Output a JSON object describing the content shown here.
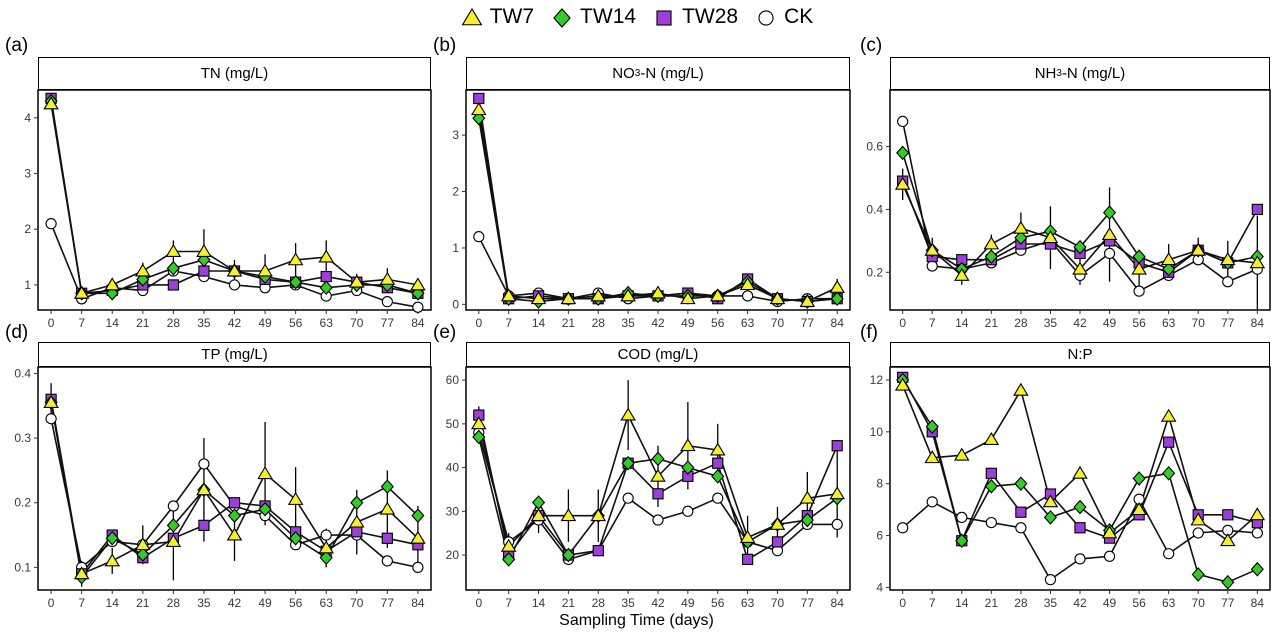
{
  "legend": [
    {
      "name": "TW7",
      "marker": "triangle",
      "color": "#f5ef2e"
    },
    {
      "name": "TW14",
      "marker": "diamond",
      "color": "#35c92a"
    },
    {
      "name": "TW28",
      "marker": "square",
      "color": "#9b3fd6"
    },
    {
      "name": "CK",
      "marker": "circle",
      "color": "#ffffff"
    }
  ],
  "xlabel": "Sampling Time (days)",
  "chart_data": [
    {
      "type": "line",
      "letter": "(a)",
      "title": "TN (mg/L)",
      "x": [
        0,
        7,
        14,
        21,
        28,
        35,
        42,
        49,
        56,
        63,
        70,
        77,
        84
      ],
      "ylim": [
        0.55,
        4.5
      ],
      "yticks": [
        1,
        2,
        3,
        4
      ],
      "ytick_labels": [
        "1",
        "2",
        "3",
        "4"
      ],
      "series": [
        {
          "name": "TW7",
          "values": [
            4.25,
            0.85,
            1.0,
            1.25,
            1.6,
            1.6,
            1.25,
            1.25,
            1.45,
            1.5,
            1.05,
            1.1,
            1.0
          ],
          "err": [
            0.1,
            0.05,
            0.1,
            0.15,
            0.2,
            0.4,
            0.2,
            0.3,
            0.3,
            0.3,
            0.15,
            0.2,
            0.1
          ]
        },
        {
          "name": "TW14",
          "values": [
            4.3,
            0.85,
            0.85,
            1.1,
            1.3,
            1.45,
            1.25,
            1.15,
            1.05,
            0.95,
            1.0,
            1.0,
            0.85
          ]
        },
        {
          "name": "TW28",
          "values": [
            4.35,
            0.85,
            0.9,
            1.0,
            1.0,
            1.25,
            1.25,
            1.1,
            1.05,
            1.15,
            1.05,
            0.95,
            0.85
          ]
        },
        {
          "name": "CK",
          "values": [
            2.1,
            0.75,
            0.95,
            0.9,
            1.25,
            1.15,
            1.0,
            0.95,
            1.0,
            0.8,
            0.9,
            0.7,
            0.6
          ]
        }
      ]
    },
    {
      "type": "line",
      "letter": "(b)",
      "title": "NO3-N (mg/L)",
      "title_parts": [
        "NO",
        "3",
        "-N (mg/L)"
      ],
      "x": [
        0,
        7,
        14,
        21,
        28,
        35,
        42,
        49,
        56,
        63,
        70,
        77,
        84
      ],
      "ylim": [
        -0.1,
        3.8
      ],
      "yticks": [
        0,
        1,
        2,
        3
      ],
      "ytick_labels": [
        "0",
        "1",
        "2",
        "3"
      ],
      "series": [
        {
          "name": "TW7",
          "values": [
            3.45,
            0.15,
            0.1,
            0.1,
            0.15,
            0.15,
            0.2,
            0.1,
            0.15,
            0.35,
            0.1,
            0.05,
            0.3
          ],
          "err": [
            0.2,
            0.05,
            0.05,
            0.05,
            0.05,
            0.05,
            0.1,
            0.1,
            0.1,
            0.15,
            0.05,
            0.05,
            0.15
          ]
        },
        {
          "name": "TW14",
          "values": [
            3.3,
            0.1,
            0.05,
            0.1,
            0.1,
            0.2,
            0.15,
            0.15,
            0.15,
            0.4,
            0.1,
            0.05,
            0.1
          ]
        },
        {
          "name": "TW28",
          "values": [
            3.65,
            0.1,
            0.15,
            0.1,
            0.1,
            0.15,
            0.15,
            0.2,
            0.1,
            0.45,
            0.1,
            0.05,
            0.1
          ]
        },
        {
          "name": "CK",
          "values": [
            1.2,
            0.15,
            0.2,
            0.1,
            0.2,
            0.1,
            0.15,
            0.2,
            0.15,
            0.15,
            0.05,
            0.1,
            0.1
          ]
        }
      ]
    },
    {
      "type": "line",
      "letter": "(c)",
      "title": "NH3-N (mg/L)",
      "title_parts": [
        "NH",
        "3",
        "-N (mg/L)"
      ],
      "x": [
        0,
        7,
        14,
        21,
        28,
        35,
        42,
        49,
        56,
        63,
        70,
        77,
        84
      ],
      "ylim": [
        0.08,
        0.78
      ],
      "yticks": [
        0.2,
        0.4,
        0.6
      ],
      "ytick_labels": [
        "0.2",
        "0.4",
        "0.6"
      ],
      "series": [
        {
          "name": "TW7",
          "values": [
            0.48,
            0.27,
            0.19,
            0.29,
            0.34,
            0.31,
            0.21,
            0.32,
            0.21,
            0.24,
            0.27,
            0.24,
            0.23
          ],
          "err": [
            0.05,
            0.04,
            0.03,
            0.03,
            0.05,
            0.1,
            0.05,
            0.15,
            0.06,
            0.05,
            0.04,
            0.06,
            0.15
          ]
        },
        {
          "name": "TW14",
          "values": [
            0.58,
            0.27,
            0.21,
            0.25,
            0.31,
            0.33,
            0.28,
            0.39,
            0.25,
            0.21,
            0.27,
            0.23,
            0.25
          ]
        },
        {
          "name": "TW28",
          "values": [
            0.49,
            0.25,
            0.24,
            0.24,
            0.29,
            0.29,
            0.26,
            0.3,
            0.23,
            0.2,
            0.27,
            0.23,
            0.4
          ]
        },
        {
          "name": "CK",
          "values": [
            0.68,
            0.22,
            0.21,
            0.23,
            0.27,
            0.3,
            0.19,
            0.26,
            0.14,
            0.19,
            0.24,
            0.17,
            0.21
          ]
        }
      ]
    },
    {
      "type": "line",
      "letter": "(d)",
      "title": "TP (mg/L)",
      "x": [
        0,
        7,
        14,
        21,
        28,
        35,
        42,
        49,
        56,
        63,
        70,
        77,
        84
      ],
      "ylim": [
        0.065,
        0.41
      ],
      "yticks": [
        0.1,
        0.2,
        0.3,
        0.4
      ],
      "ytick_labels": [
        "0.1",
        "0.2",
        "0.3",
        "0.4"
      ],
      "series": [
        {
          "name": "TW7",
          "values": [
            0.355,
            0.09,
            0.11,
            0.135,
            0.14,
            0.22,
            0.15,
            0.245,
            0.205,
            0.13,
            0.17,
            0.19,
            0.145
          ],
          "err": [
            0.03,
            0.02,
            0.02,
            0.03,
            0.06,
            0.08,
            0.04,
            0.08,
            0.05,
            0.03,
            0.05,
            0.06,
            0.05
          ]
        },
        {
          "name": "TW14",
          "values": [
            0.355,
            0.085,
            0.145,
            0.12,
            0.165,
            0.22,
            0.18,
            0.19,
            0.145,
            0.115,
            0.2,
            0.225,
            0.18
          ]
        },
        {
          "name": "TW28",
          "values": [
            0.36,
            0.09,
            0.15,
            0.115,
            0.145,
            0.165,
            0.2,
            0.195,
            0.155,
            0.125,
            0.155,
            0.145,
            0.135
          ]
        },
        {
          "name": "CK",
          "values": [
            0.33,
            0.1,
            0.14,
            0.135,
            0.195,
            0.26,
            0.195,
            0.18,
            0.135,
            0.15,
            0.15,
            0.11,
            0.1
          ]
        }
      ]
    },
    {
      "type": "line",
      "letter": "(e)",
      "title": "COD (mg/L)",
      "x": [
        0,
        7,
        14,
        21,
        28,
        35,
        42,
        49,
        56,
        63,
        70,
        77,
        84
      ],
      "ylim": [
        12,
        63
      ],
      "yticks": [
        20,
        30,
        40,
        50,
        60
      ],
      "ytick_labels": [
        "20",
        "30",
        "40",
        "50",
        "60"
      ],
      "series": [
        {
          "name": "TW7",
          "values": [
            50,
            22,
            29,
            29,
            29,
            52,
            38,
            45,
            44,
            24,
            27,
            33,
            34
          ],
          "err": [
            4,
            3,
            4,
            6,
            6,
            8,
            7,
            10,
            6,
            5,
            4,
            6,
            10
          ]
        },
        {
          "name": "TW14",
          "values": [
            47,
            19,
            32,
            20,
            29,
            41,
            42,
            40,
            38,
            23,
            27,
            28,
            33
          ]
        },
        {
          "name": "TW28",
          "values": [
            52,
            20,
            29,
            20,
            21,
            41,
            34,
            38,
            41,
            19,
            23,
            29,
            45
          ]
        },
        {
          "name": "CK",
          "values": [
            48,
            23,
            28,
            19,
            21,
            33,
            28,
            30,
            33,
            23,
            21,
            27,
            27
          ]
        }
      ]
    },
    {
      "type": "line",
      "letter": "(f)",
      "title": "N:P",
      "x": [
        0,
        7,
        14,
        21,
        28,
        35,
        42,
        49,
        56,
        63,
        70,
        77,
        84
      ],
      "ylim": [
        3.9,
        12.5
      ],
      "yticks": [
        4,
        6,
        8,
        10,
        12
      ],
      "ytick_labels": [
        "4",
        "6",
        "8",
        "10",
        "12"
      ],
      "series": [
        {
          "name": "TW7",
          "values": [
            11.8,
            9.0,
            9.1,
            9.7,
            11.6,
            7.3,
            8.4,
            6.1,
            7.0,
            10.6,
            6.6,
            5.8,
            6.8
          ]
        },
        {
          "name": "TW14",
          "values": [
            12.0,
            10.2,
            5.8,
            7.9,
            8.0,
            6.7,
            7.1,
            6.2,
            8.2,
            8.4,
            4.5,
            4.2,
            4.7
          ]
        },
        {
          "name": "TW28",
          "values": [
            12.1,
            10.0,
            5.8,
            8.4,
            6.9,
            7.6,
            6.3,
            5.9,
            6.8,
            9.6,
            6.8,
            6.8,
            6.5
          ]
        },
        {
          "name": "CK",
          "values": [
            6.3,
            7.3,
            6.7,
            6.5,
            6.3,
            4.3,
            5.1,
            5.2,
            7.4,
            5.3,
            6.1,
            6.2,
            6.1
          ]
        }
      ]
    }
  ]
}
